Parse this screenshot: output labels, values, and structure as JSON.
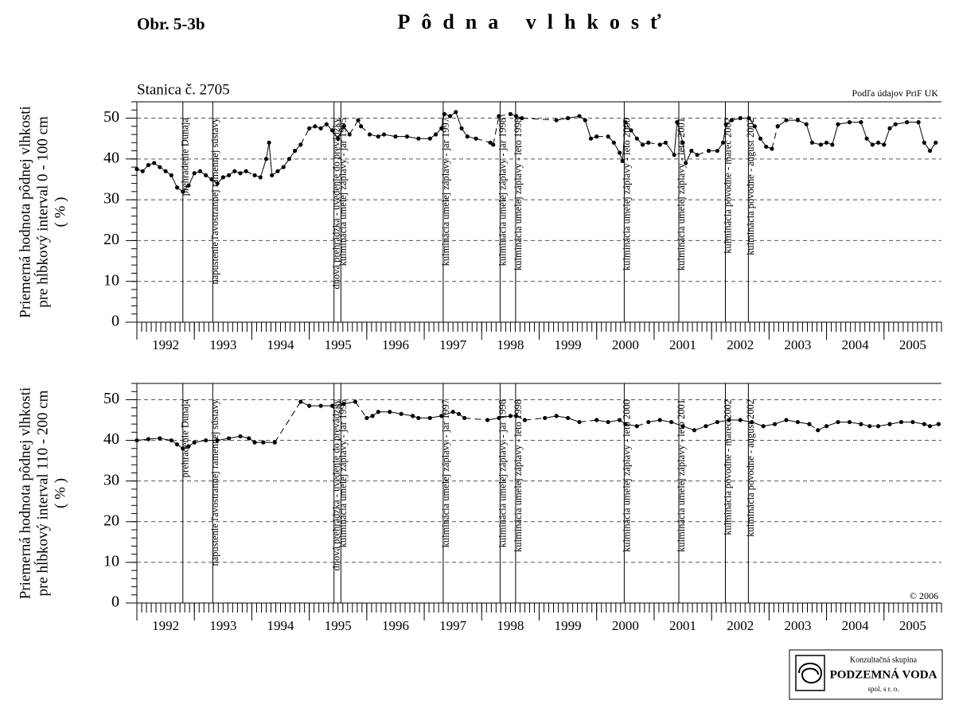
{
  "figure_label": "Obr. 5-3b",
  "title": "Pôdna vlhkosť",
  "station": "Stanica č. 2705",
  "events": [
    {
      "x": 1992.8,
      "label": "prehradenie Dunaja"
    },
    {
      "x": 1993.32,
      "label": "napustenie ľavostrannej ramennej sústavy"
    },
    {
      "x": 1995.43,
      "label": "dnová prehrádzka - uvedenie do prevádzky"
    },
    {
      "x": 1995.55,
      "label": "kulminácia umelej záplavy - jar 1995"
    },
    {
      "x": 1997.33,
      "label": "kulminácia umelej záplavy - jar 1997"
    },
    {
      "x": 1998.32,
      "label": "kulminácia umelej záplavy - jar 1998"
    },
    {
      "x": 1998.59,
      "label": "kulminácia umelej záplavy - leto 1998"
    },
    {
      "x": 2000.48,
      "label": "kulminácia umelej záplavy - leto 2000"
    },
    {
      "x": 2001.43,
      "label": "kulminácia umelej záplavy - leto 2001"
    },
    {
      "x": 2002.24,
      "label": "kulminácia povodne - marec 2002"
    },
    {
      "x": 2002.64,
      "label": "kulminácia povodne - august 2002"
    }
  ],
  "logo": {
    "line1": "Konzultačná skupina",
    "line2": "PODZEMNÁ VODA",
    "line3": "spol. s r. o."
  },
  "chart_data": [
    {
      "type": "line",
      "note": "Podľa údajov PriF UK",
      "ylabel": [
        "Priemerná hodnota pôdnej vlhkosti",
        "pre hĺbkový interval 0 - 100 cm",
        "( % )"
      ],
      "xlim": [
        1992,
        2006
      ],
      "xticks": [
        1992,
        1993,
        1994,
        1995,
        1996,
        1997,
        1998,
        1999,
        2000,
        2001,
        2002,
        2003,
        2004,
        2005
      ],
      "ylim": [
        0,
        54
      ],
      "yticks": [
        0,
        10,
        20,
        30,
        40,
        50
      ],
      "grid": true,
      "color": "#000000",
      "x": [
        1992.0,
        1992.1,
        1992.2,
        1992.3,
        1992.4,
        1992.5,
        1992.6,
        1992.7,
        1992.8,
        1992.9,
        1993.0,
        1993.1,
        1993.2,
        1993.3,
        1993.4,
        1993.5,
        1993.6,
        1993.7,
        1993.8,
        1993.9,
        1994.0,
        1994.05,
        1994.15,
        1994.25,
        1994.3,
        1994.35,
        1994.45,
        1994.55,
        1994.65,
        1994.75,
        1994.85,
        1994.9,
        1995.0,
        1995.1,
        1995.2,
        1995.3,
        1995.4,
        1995.5,
        1995.6,
        1995.7,
        1995.8,
        1995.85,
        1995.9,
        1996.0,
        1996.05,
        1996.2,
        1996.3,
        1996.5,
        1996.7,
        1996.9,
        1997.1,
        1997.2,
        1997.3,
        1997.35,
        1997.45,
        1997.55,
        1997.65,
        1997.75,
        1997.9,
        1998.0,
        1998.15,
        1998.2,
        1998.25,
        1998.3,
        1998.4,
        1998.5,
        1998.6,
        1998.7,
        1998.8,
        1999.3,
        1999.5,
        1999.7,
        1999.8,
        1999.9,
        2000.0,
        2000.1,
        2000.2,
        2000.3,
        2000.4,
        2000.45,
        2000.5,
        2000.6,
        2000.7,
        2000.8,
        2000.9,
        2001.0,
        2001.1,
        2001.2,
        2001.35,
        2001.4,
        2001.5,
        2001.55,
        2001.65,
        2001.75,
        2001.85,
        2001.95,
        2002.1,
        2002.2,
        2002.25,
        2002.35,
        2002.5,
        2002.65,
        2002.75,
        2002.85,
        2002.95,
        2003.05,
        2003.1,
        2003.15,
        2003.3,
        2003.5,
        2003.65,
        2003.75,
        2003.9,
        2003.95,
        2004.0,
        2004.1,
        2004.2,
        2004.4,
        2004.6,
        2004.7,
        2004.8,
        2004.85,
        2004.9,
        2005.0,
        2005.1,
        2005.2,
        2005.4,
        2005.6,
        2005.7,
        2005.8,
        2005.9
      ],
      "values": [
        37.5,
        37,
        38.5,
        39,
        38,
        37,
        36,
        33,
        32,
        33.5,
        36.5,
        37,
        36,
        35,
        34,
        35.5,
        36,
        37,
        36.5,
        37,
        null,
        36,
        35.5,
        40,
        44,
        36,
        37,
        38,
        40,
        42,
        43.5,
        null,
        47.5,
        48,
        47.5,
        48.5,
        47,
        45,
        48,
        46,
        null,
        49.5,
        48,
        null,
        46,
        45.5,
        46,
        45.5,
        45.5,
        45,
        45,
        46,
        47.5,
        51,
        50.5,
        51.5,
        47.5,
        45.5,
        45,
        null,
        44,
        43.5,
        null,
        50.5,
        null,
        51,
        50.5,
        50,
        null,
        49.5,
        50,
        50.5,
        49.5,
        45,
        45.5,
        null,
        45.5,
        44,
        41.5,
        39.5,
        49,
        47,
        45,
        43.5,
        44,
        null,
        43.5,
        44,
        41,
        49,
        44,
        39,
        42,
        41,
        null,
        42,
        42,
        44,
        48.5,
        49.5,
        50,
        50,
        48,
        45,
        43,
        42.5,
        null,
        48,
        49.5,
        49.5,
        48.5,
        44,
        43.5,
        null,
        44,
        43.5,
        48.5,
        49,
        49,
        45,
        43.5,
        null,
        44,
        43.5,
        47.5,
        48.5,
        49,
        49,
        44,
        42,
        44
      ]
    },
    {
      "type": "line",
      "note": "© 2006",
      "ylabel": [
        "Priemerná hodnota pôdnej vlhkosti",
        "pre hĺbkový interval 110 - 200 cm",
        "( % )"
      ],
      "xlim": [
        1992,
        2006
      ],
      "xticks": [
        1992,
        1993,
        1994,
        1995,
        1996,
        1997,
        1998,
        1999,
        2000,
        2001,
        2002,
        2003,
        2004,
        2005
      ],
      "ylim": [
        0,
        54
      ],
      "yticks": [
        0,
        10,
        20,
        30,
        40,
        50
      ],
      "grid": true,
      "color": "#000000",
      "x": [
        1992.0,
        1992.2,
        1992.4,
        1992.6,
        1992.7,
        1992.8,
        1992.9,
        1993.0,
        1993.2,
        1993.4,
        1993.6,
        1993.8,
        1993.95,
        1994.0,
        1994.05,
        1994.2,
        1994.4,
        1994.6,
        1994.85,
        1995.0,
        1995.2,
        1995.4,
        1995.6,
        1995.8,
        1995.9,
        1996.0,
        1996.1,
        1996.2,
        1996.4,
        1996.6,
        1996.8,
        1996.9,
        1997.1,
        1997.3,
        1997.5,
        1997.6,
        1997.7,
        1997.8,
        1998.1,
        1998.3,
        1998.5,
        1998.6,
        1998.7,
        1998.75,
        1998.9,
        1999.1,
        1999.3,
        1999.5,
        1999.7,
        1999.8,
        2000.0,
        2000.2,
        2000.4,
        2000.5,
        2000.7,
        2000.8,
        2000.9,
        2001.1,
        2001.3,
        2001.5,
        2001.7,
        2001.9,
        2002.1,
        2002.3,
        2002.5,
        2002.7,
        2002.9,
        2003.1,
        2003.3,
        2003.5,
        2003.7,
        2003.8,
        2003.85,
        2004.0,
        2004.2,
        2004.4,
        2004.6,
        2004.75,
        2004.8,
        2004.9,
        2005.1,
        2005.3,
        2005.5,
        2005.7,
        2005.8,
        2005.95
      ],
      "values": [
        40,
        40.3,
        40.5,
        40,
        39,
        38,
        38.5,
        39.5,
        40,
        40,
        40.5,
        41,
        40.5,
        null,
        39.5,
        39.5,
        39.5,
        null,
        49.5,
        48.5,
        48.5,
        48.5,
        49,
        49.5,
        null,
        45.5,
        46,
        47,
        47,
        46.5,
        46,
        45.5,
        45.5,
        46,
        47,
        46.5,
        45.5,
        null,
        45,
        45.5,
        46,
        46,
        null,
        45,
        null,
        45.5,
        46,
        45.5,
        44.5,
        null,
        45,
        44.5,
        45,
        44,
        43.5,
        null,
        44.5,
        45,
        44.5,
        43.5,
        42.5,
        43.5,
        44.5,
        45,
        45,
        44.5,
        43.5,
        44,
        45,
        44.5,
        44,
        null,
        42.5,
        43.5,
        44.5,
        44.5,
        44,
        43.5,
        null,
        43.5,
        44,
        44.5,
        44.5,
        44,
        43.5,
        44
      ]
    }
  ]
}
